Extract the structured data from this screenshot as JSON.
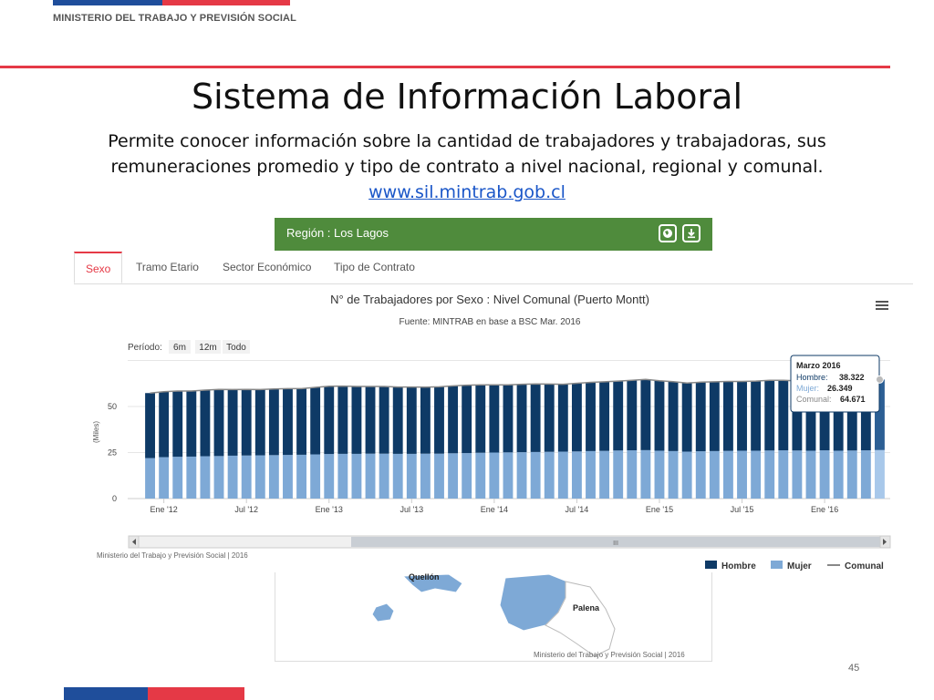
{
  "header": {
    "ministry": "MINISTERIO DEL TRABAJO Y PREVISIÓN SOCIAL"
  },
  "slide": {
    "title": "Sistema de Información Laboral",
    "description_line1": "Permite conocer información sobre la cantidad de trabajadores y trabajadoras, sus",
    "description_line2": "remuneraciones promedio y tipo de contrato a nivel nacional, regional y comunal.",
    "link": "www.sil.mintrab.gob.cl",
    "page_number": "45"
  },
  "region_panel": {
    "label": "Región : Los Lagos",
    "icons": [
      "globe-icon",
      "download-icon"
    ]
  },
  "tabs": [
    {
      "label": "Sexo",
      "active": true
    },
    {
      "label": "Tramo Etario",
      "active": false
    },
    {
      "label": "Sector Económico",
      "active": false
    },
    {
      "label": "Tipo de Contrato",
      "active": false
    }
  ],
  "period_selector": {
    "label": "Período:",
    "options": [
      "6m",
      "12m",
      "Todo"
    ]
  },
  "tooltip": {
    "month": "Marzo 2016",
    "hombre_label": "Hombre:",
    "hombre": "38.322",
    "mujer_label": "Mujer:",
    "mujer": "26.349",
    "comunal_label": "Comunal:",
    "comunal": "64.671"
  },
  "credits": {
    "chart": "Ministerio del Trabajo y Previsión Social | 2016",
    "map": "Ministerio del Trabajo y Previsión Social | 2016"
  },
  "map": {
    "labels": [
      "Quellón",
      "Palena"
    ]
  },
  "scrollbar": {
    "thumb_label": "III"
  },
  "colors": {
    "hombre": "#0e3a66",
    "mujer": "#7ea9d6",
    "comunal": "#888888",
    "accent_red": "#e53946",
    "panel_green": "#4f8b3c",
    "flag_blue": "#1f4e9b"
  },
  "chart_data": {
    "type": "bar",
    "title": "N° de Trabajadores por Sexo : Nivel Comunal (Puerto Montt)",
    "subtitle": "Fuente: MINTRAB en base a BSC Mar. 2016",
    "ylabel": "(Miles)",
    "ylim": [
      0,
      75
    ],
    "yticks": [
      0,
      25,
      50
    ],
    "stacked": true,
    "x_tick_labels": [
      "Ene '12",
      "Jul '12",
      "Ene '13",
      "Jul '13",
      "Ene '14",
      "Jul '14",
      "Ene '15",
      "Jul '15",
      "Ene '16"
    ],
    "x_tick_indices": [
      1,
      7,
      13,
      19,
      25,
      31,
      37,
      43,
      49
    ],
    "series": [
      {
        "name": "Hombre",
        "values": [
          35.3,
          35.5,
          35.7,
          35.6,
          35.9,
          36.2,
          35.9,
          35.9,
          35.7,
          35.9,
          36.0,
          35.9,
          36.4,
          36.8,
          36.8,
          36.6,
          36.5,
          36.5,
          36.3,
          36.3,
          36.1,
          36.3,
          36.6,
          36.9,
          36.9,
          36.8,
          36.7,
          36.9,
          37.0,
          36.8,
          36.6,
          37.0,
          37.3,
          37.5,
          37.7,
          38.0,
          38.4,
          38.0,
          37.7,
          37.2,
          37.5,
          37.6,
          37.7,
          37.6,
          37.8,
          38.1,
          38.0,
          37.8,
          37.5,
          37.7,
          37.6,
          37.9,
          38.1,
          38.3
        ]
      },
      {
        "name": "Mujer",
        "values": [
          22.0,
          22.5,
          22.7,
          22.8,
          23.0,
          23.1,
          23.3,
          23.4,
          23.5,
          23.6,
          23.7,
          23.8,
          24.0,
          24.2,
          24.3,
          24.3,
          24.4,
          24.4,
          24.3,
          24.3,
          24.4,
          24.4,
          24.6,
          24.7,
          24.9,
          25.0,
          25.1,
          25.2,
          25.3,
          25.4,
          25.5,
          25.6,
          25.8,
          25.9,
          26.1,
          26.2,
          26.3,
          26.0,
          25.8,
          25.5,
          25.7,
          25.8,
          25.9,
          26.0,
          26.0,
          26.1,
          26.2,
          26.1,
          26.0,
          26.2,
          26.0,
          26.1,
          26.2,
          26.349
        ]
      },
      {
        "name": "Comunal",
        "type": "line",
        "values": [
          57.3,
          58.0,
          58.4,
          58.4,
          58.9,
          59.3,
          59.2,
          59.3,
          59.2,
          59.5,
          59.7,
          59.7,
          60.4,
          61.0,
          61.1,
          60.9,
          60.9,
          60.9,
          60.6,
          60.6,
          60.5,
          60.7,
          61.2,
          61.6,
          61.8,
          61.8,
          61.8,
          62.1,
          62.3,
          62.2,
          62.1,
          62.6,
          63.1,
          63.4,
          63.8,
          64.2,
          64.7,
          64.0,
          63.5,
          62.7,
          63.2,
          63.4,
          63.6,
          63.6,
          63.8,
          64.2,
          64.2,
          63.9,
          63.5,
          63.9,
          63.6,
          64.0,
          64.3,
          64.671
        ]
      }
    ],
    "legend": [
      "Hombre",
      "Mujer",
      "Comunal"
    ],
    "legend_position": "bottom-right"
  }
}
